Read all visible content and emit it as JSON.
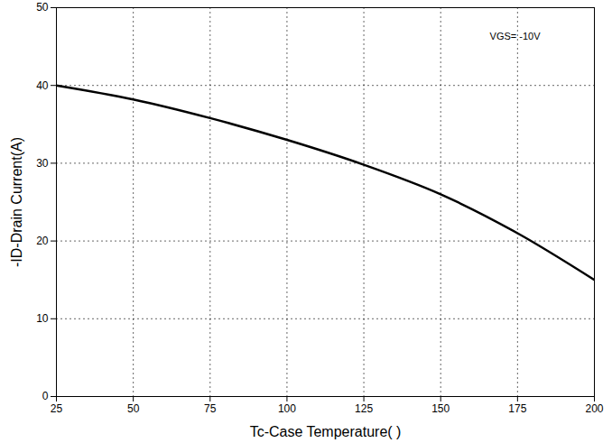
{
  "chart_data": {
    "type": "line",
    "x_label": "Tc-Case Temperature( )",
    "y_label": "-ID-Drain Current(A)",
    "annotation": "VGS= -10V",
    "x": [
      25,
      50,
      75,
      100,
      125,
      150,
      175,
      200
    ],
    "series": [
      {
        "name": "VGS= -10V",
        "color": "#000000",
        "values": [
          40,
          38.2,
          35.8,
          33,
          29.8,
          26,
          21,
          15
        ]
      }
    ],
    "xlim": [
      25,
      200
    ],
    "xticks": [
      25,
      50,
      75,
      100,
      125,
      150,
      175,
      200
    ],
    "ylim": [
      0,
      50
    ],
    "yticks": [
      0,
      10,
      20,
      30,
      40,
      50
    ],
    "grid": true
  }
}
